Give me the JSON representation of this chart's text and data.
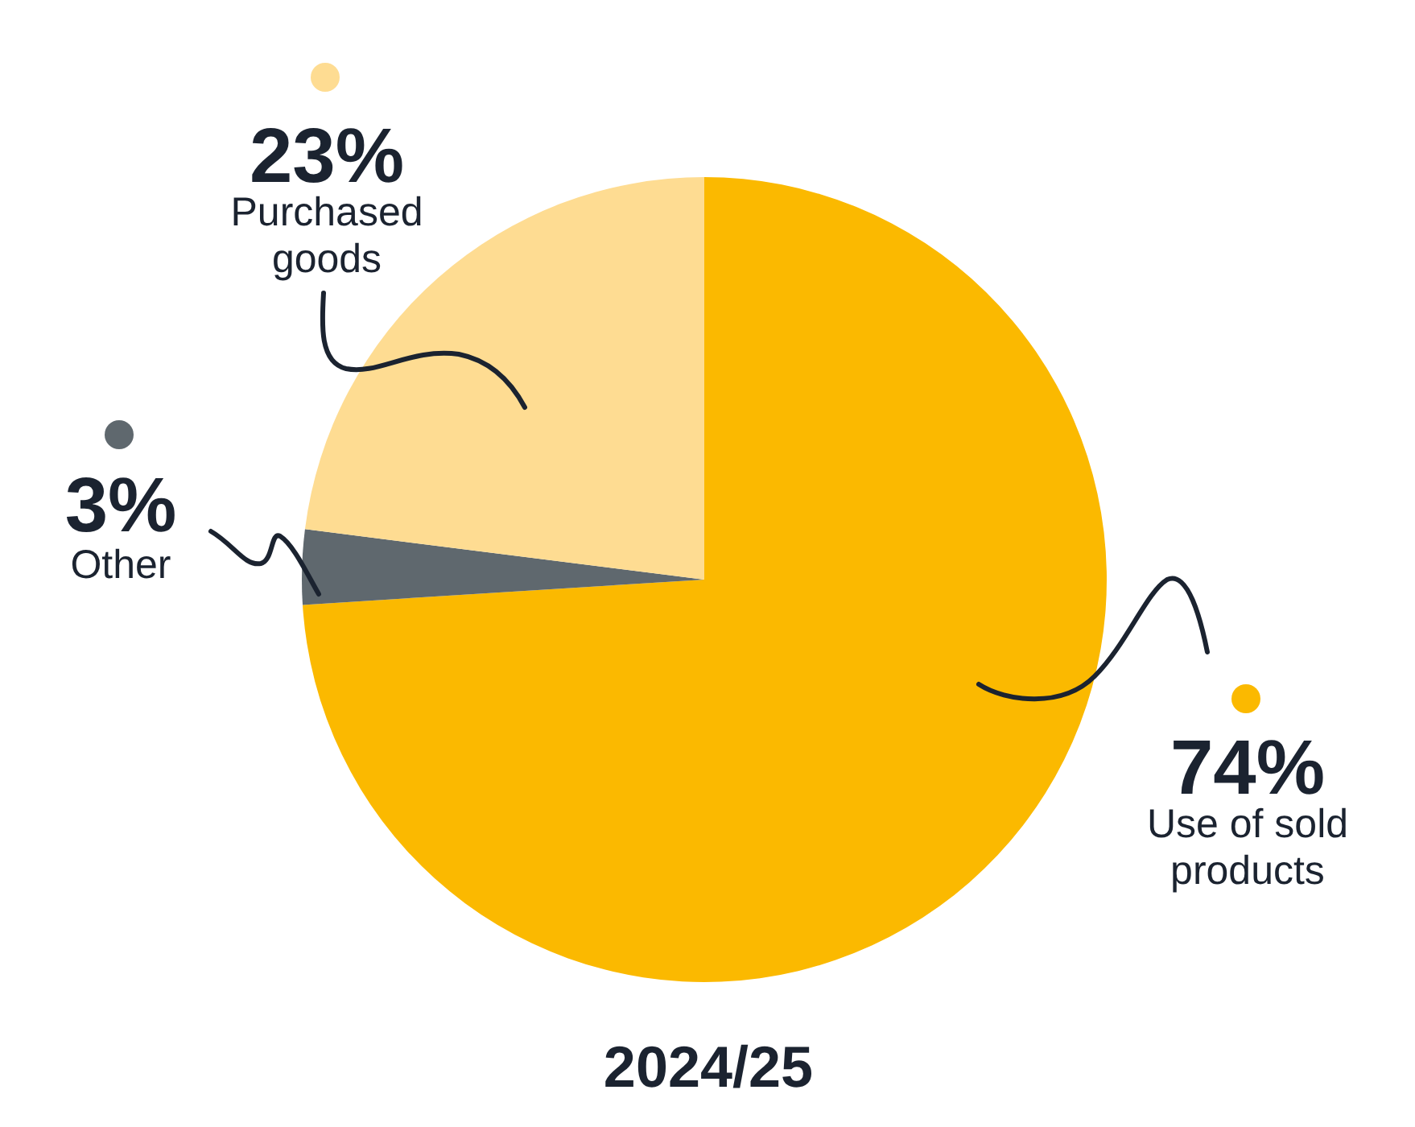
{
  "chart_data": {
    "type": "pie",
    "title": "2024/25",
    "categories": [
      "Use of sold products",
      "Other",
      "Purchased goods"
    ],
    "values": [
      74,
      3,
      23
    ],
    "colors": [
      "#fbb900",
      "#5f686e",
      "#fedc92"
    ],
    "value_labels": [
      "74%",
      "3%",
      "23%"
    ]
  }
}
